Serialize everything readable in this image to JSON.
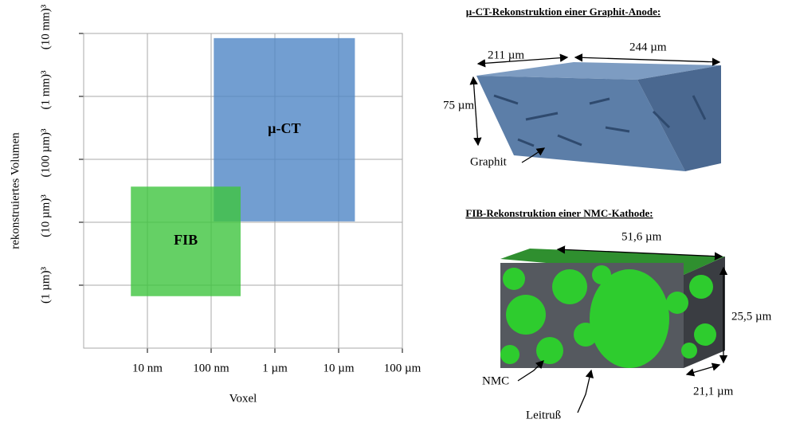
{
  "chart_data": {
    "type": "region",
    "x_label": "Voxel",
    "y_label": "rekonstruiertes Volumen",
    "xlog": true,
    "ylog": true,
    "grid": true,
    "xlim": [
      1e-09,
      0.0001
    ],
    "xticks": [
      {
        "value": 1e-08,
        "label": "10 nm"
      },
      {
        "value": 1e-07,
        "label": "100 nm"
      },
      {
        "value": 1e-06,
        "label": "1 µm"
      },
      {
        "value": 1e-05,
        "label": "10 µm"
      },
      {
        "value": 0.0001,
        "label": "100 µm"
      }
    ],
    "ylim": [
      0.001,
      1000000000000
    ],
    "yticks": [
      {
        "value": 1,
        "label": "(1 µm)³"
      },
      {
        "value": 1000,
        "label": "(10 µm)³"
      },
      {
        "value": 1000000,
        "label": "(100 µm)³"
      },
      {
        "value": 1000000000,
        "label": "(1 mm)³"
      },
      {
        "value": 1000000000000,
        "label": "(10 mm)³"
      }
    ],
    "series": [
      {
        "name": "µ-CT",
        "color": "#4f86c6",
        "x": [
          1.1e-07,
          1.8e-05
        ],
        "y": [
          1100,
          600000000000
        ]
      },
      {
        "name": "FIB",
        "color": "#3ec43e",
        "x": [
          5.5e-09,
          2.9e-07
        ],
        "y": [
          0.3,
          50000
        ]
      }
    ]
  },
  "panels": [
    {
      "title": "µ-CT-Rekonstruktion einer Graphit-Anode:",
      "labels": [
        "211 µm",
        "244 µm",
        "75 µm",
        "Graphit"
      ]
    },
    {
      "title": "FIB-Rekonstruktion einer NMC-Kathode:",
      "labels": [
        "51,6 µm",
        "25,5 µm",
        "21,1 µm",
        "NMC",
        "Leitruß"
      ]
    }
  ]
}
